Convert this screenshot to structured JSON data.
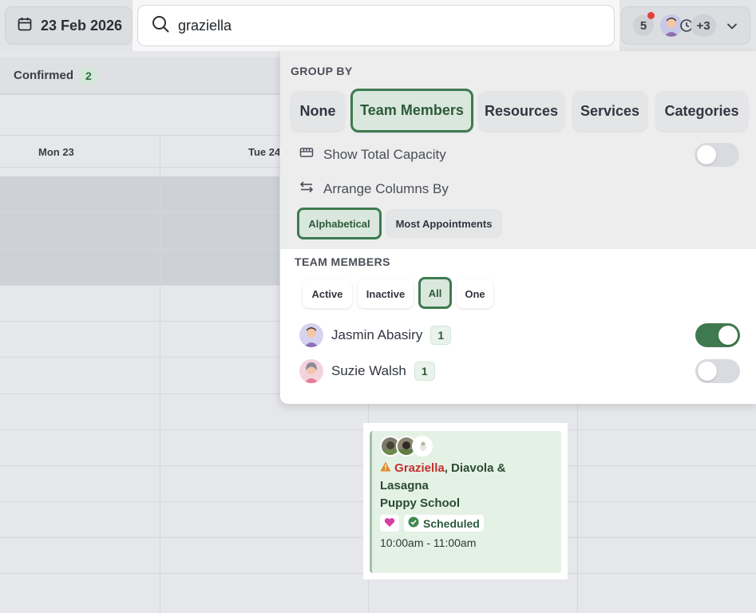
{
  "topbar": {
    "date_label": "23 Feb 2026",
    "search_value": "graziella",
    "notification_count": "5",
    "extra_staff_count": "+3"
  },
  "calendar": {
    "confirmed_label": "Confirmed",
    "confirmed_count": "2",
    "days": [
      "Mon 23",
      "Tue 24"
    ]
  },
  "panel": {
    "group_by_title": "GROUP BY",
    "group_options": [
      "None",
      "Team Members",
      "Resources",
      "Services",
      "Categories"
    ],
    "group_selected": "Team Members",
    "show_total_capacity": "Show Total Capacity",
    "arrange_columns_by": "Arrange Columns By",
    "arrange_options": [
      "Alphabetical",
      "Most Appointments"
    ],
    "arrange_selected": "Alphabetical",
    "team_members_title": "TEAM MEMBERS",
    "filter_options": [
      "Active",
      "Inactive",
      "All",
      "One"
    ],
    "filter_selected": "All",
    "members": [
      {
        "name": "Jasmin Abasiry",
        "count": "1",
        "enabled": true
      },
      {
        "name": "Suzie Walsh",
        "count": "1",
        "enabled": false
      }
    ]
  },
  "appointment": {
    "title_highlight": "Graziella",
    "title_rest": ", Diavola & Lasagna",
    "service": "Puppy School",
    "status": "Scheduled",
    "time": "10:00am - 11:00am"
  },
  "colors": {
    "accent_green": "#3f7a4f",
    "highlight_red": "#c53030",
    "card_bg": "#e4f2e6"
  }
}
